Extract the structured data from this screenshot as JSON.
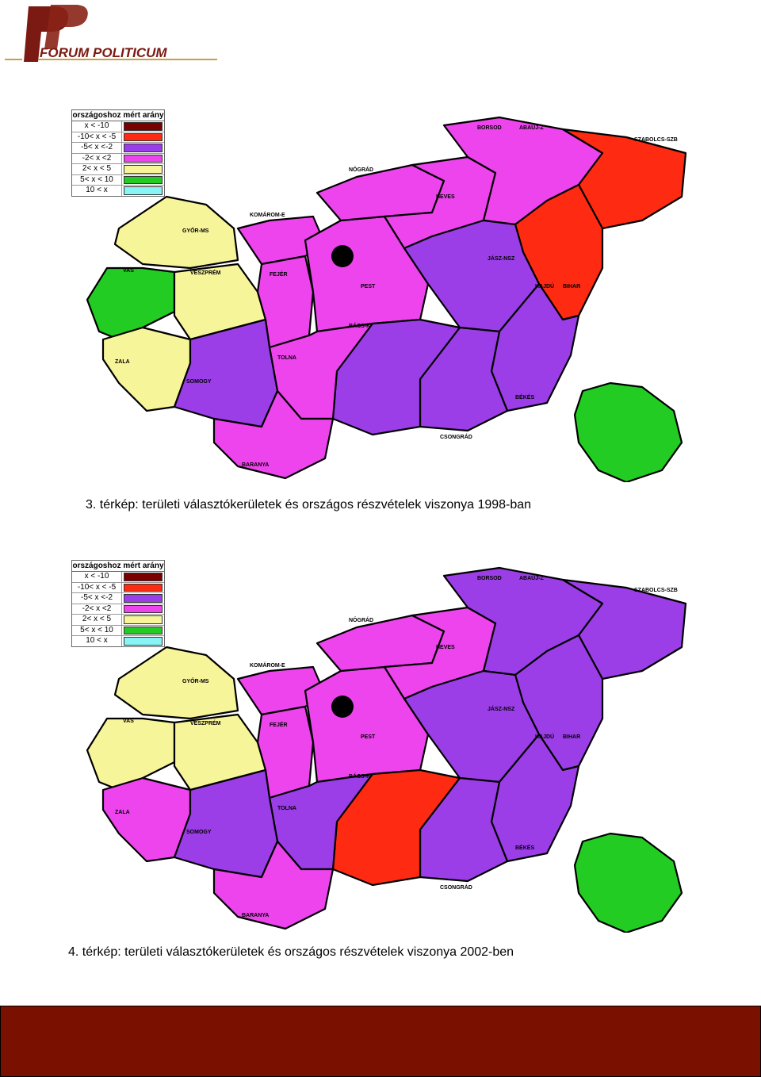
{
  "header": {
    "logo_text": "FORUM POLITICUM",
    "logo_letter": "FP",
    "brand_color": "#7a1a12",
    "accent_color": "#c8a040"
  },
  "legend": {
    "title": "országoshoz mért arány",
    "rows": [
      {
        "label": "x < -10",
        "color": "#7a0000"
      },
      {
        "label": "-10< x < -5",
        "color": "#ff2a12"
      },
      {
        "label": "-5< x <-2",
        "color": "#9b3ee8"
      },
      {
        "label": "-2< x <2",
        "color": "#ee44ee"
      },
      {
        "label": "2< x < 5",
        "color": "#f7f59a"
      },
      {
        "label": "5< x < 10",
        "color": "#22cc22"
      },
      {
        "label": "10 < x",
        "color": "#88f4f4"
      }
    ]
  },
  "map_labels": {
    "borsod": "BORSOD",
    "abauj": "ABAÚJ-Z",
    "szabolcs": "SZABOLCS-SZB",
    "nograd": "NÓGRÁD",
    "heves": "HEVES",
    "komarom": "KOMÁROM-E",
    "gyor": "GYŐR-MS",
    "vas": "VAS",
    "veszprem": "VESZPRÉM",
    "fejer": "FEJÉR",
    "pest": "PEST",
    "jasz": "JÁSZ-NSZ",
    "hajdu": "HAJDÚ",
    "bihar": "BIHAR",
    "zala": "ZALA",
    "bacs": "BÁCS-K",
    "tolna": "TOLNA",
    "somogy": "SOMOGY",
    "bekes": "BÉKÉS",
    "csongrad": "CSONGRÁD",
    "baranya": "BARANYA"
  },
  "maps": [
    {
      "caption": "3. térkép: területi választókerületek és országos részvételek viszonya 1998-ban",
      "region_colors": {
        "gyor": "#f7f59a",
        "vas": "#22cc22",
        "veszprem": "#f7f59a",
        "zala": "#f7f59a",
        "komarom": "#ee44ee",
        "fejer": "#ee44ee",
        "pest": "#ee44ee",
        "nograd": "#ee44ee",
        "heves": "#ee44ee",
        "borsod": "#ee44ee",
        "szabolcs": "#ff2a12",
        "hajdu": "#ff2a12",
        "jasz": "#9b3ee8",
        "bekes": "#9b3ee8",
        "csongrad": "#9b3ee8",
        "bacs": "#9b3ee8",
        "tolna": "#ee44ee",
        "somogy": "#9b3ee8",
        "baranya": "#ee44ee",
        "budapest": "#22cc22"
      }
    },
    {
      "caption": "4. térkép: területi választókerületek és országos részvételek viszonya 2002-ben",
      "region_colors": {
        "gyor": "#f7f59a",
        "vas": "#f7f59a",
        "veszprem": "#f7f59a",
        "zala": "#ee44ee",
        "komarom": "#ee44ee",
        "fejer": "#ee44ee",
        "pest": "#ee44ee",
        "nograd": "#ee44ee",
        "heves": "#ee44ee",
        "borsod": "#9b3ee8",
        "szabolcs": "#9b3ee8",
        "hajdu": "#9b3ee8",
        "jasz": "#9b3ee8",
        "bekes": "#9b3ee8",
        "csongrad": "#9b3ee8",
        "bacs": "#ff2a12",
        "tolna": "#9b3ee8",
        "somogy": "#9b3ee8",
        "baranya": "#ee44ee",
        "budapest": "#22cc22"
      }
    }
  ]
}
